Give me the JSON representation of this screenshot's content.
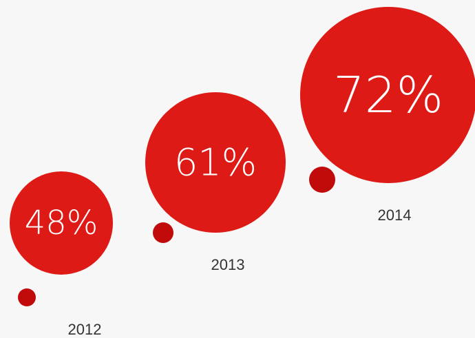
{
  "chart_data": {
    "type": "bubble",
    "categories": [
      "2012",
      "2013",
      "2014"
    ],
    "values": [
      48,
      61,
      72
    ],
    "value_labels": [
      "48%",
      "61%",
      "72%"
    ],
    "title": "",
    "xlabel": "",
    "ylabel": ""
  },
  "colors": {
    "bubble": "#dd1a16",
    "dot": "#c10a0a",
    "label": "#333333",
    "background": "#f7f7f7"
  }
}
